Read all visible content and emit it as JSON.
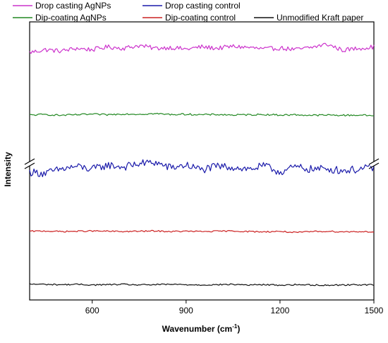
{
  "chart_data": {
    "type": "line",
    "xlabel": "Wavenumber (cm",
    "xlabel_sup": "-1",
    "xlabel_tail": ")",
    "ylabel": "Intensity",
    "xlim": [
      400,
      1500
    ],
    "x_ticks": [
      600,
      900,
      1200,
      1500
    ],
    "y_axis_break": true,
    "legend_placement": "top",
    "series": [
      {
        "name": "Drop casting AgNPs",
        "color": "#cc33cc",
        "x": [
          400,
          450,
          500,
          550,
          600,
          650,
          700,
          750,
          800,
          850,
          900,
          950,
          1000,
          1050,
          1100,
          1150,
          1200,
          1250,
          1300,
          1350,
          1400,
          1450,
          1500
        ],
        "y": [
          0.89,
          0.9,
          0.895,
          0.905,
          0.9,
          0.91,
          0.905,
          0.915,
          0.905,
          0.908,
          0.902,
          0.91,
          0.905,
          0.912,
          0.908,
          0.902,
          0.906,
          0.9,
          0.908,
          0.92,
          0.898,
          0.905,
          0.91
        ]
      },
      {
        "name": "Drop casting control",
        "color": "#1a1aaa",
        "x": [
          400,
          450,
          500,
          550,
          600,
          650,
          700,
          750,
          800,
          850,
          900,
          950,
          1000,
          1050,
          1100,
          1150,
          1200,
          1250,
          1300,
          1350,
          1400,
          1450,
          1500
        ],
        "y": [
          0.46,
          0.455,
          0.47,
          0.48,
          0.47,
          0.485,
          0.478,
          0.49,
          0.495,
          0.475,
          0.485,
          0.468,
          0.48,
          0.478,
          0.47,
          0.482,
          0.46,
          0.478,
          0.47,
          0.472,
          0.465,
          0.47,
          0.475
        ]
      },
      {
        "name": "Dip-coating AgNPs",
        "color": "#228822",
        "x": [
          400,
          450,
          500,
          550,
          600,
          650,
          700,
          750,
          800,
          850,
          900,
          950,
          1000,
          1050,
          1100,
          1150,
          1200,
          1250,
          1300,
          1350,
          1400,
          1450,
          1500
        ],
        "y": [
          0.665,
          0.667,
          0.664,
          0.666,
          0.668,
          0.666,
          0.669,
          0.668,
          0.67,
          0.667,
          0.668,
          0.666,
          0.667,
          0.665,
          0.666,
          0.667,
          0.665,
          0.666,
          0.664,
          0.665,
          0.664,
          0.665,
          0.663
        ]
      },
      {
        "name": "Dip-coating control",
        "color": "#cc2222",
        "x": [
          400,
          450,
          500,
          550,
          600,
          650,
          700,
          750,
          800,
          850,
          900,
          950,
          1000,
          1050,
          1100,
          1150,
          1200,
          1250,
          1300,
          1350,
          1400,
          1450,
          1500
        ],
        "y": [
          0.247,
          0.248,
          0.246,
          0.247,
          0.248,
          0.247,
          0.246,
          0.247,
          0.248,
          0.246,
          0.247,
          0.246,
          0.247,
          0.248,
          0.246,
          0.245,
          0.247,
          0.242,
          0.246,
          0.247,
          0.245,
          0.246,
          0.245
        ]
      },
      {
        "name": "Unmodified Kraft paper",
        "color": "#111111",
        "x": [
          400,
          450,
          500,
          550,
          600,
          650,
          700,
          750,
          800,
          850,
          900,
          950,
          1000,
          1050,
          1100,
          1150,
          1200,
          1250,
          1300,
          1350,
          1400,
          1450,
          1500
        ],
        "y": [
          0.057,
          0.056,
          0.055,
          0.056,
          0.054,
          0.055,
          0.056,
          0.054,
          0.055,
          0.056,
          0.055,
          0.054,
          0.055,
          0.056,
          0.054,
          0.055,
          0.053,
          0.055,
          0.054,
          0.053,
          0.054,
          0.055,
          0.054
        ]
      }
    ]
  }
}
